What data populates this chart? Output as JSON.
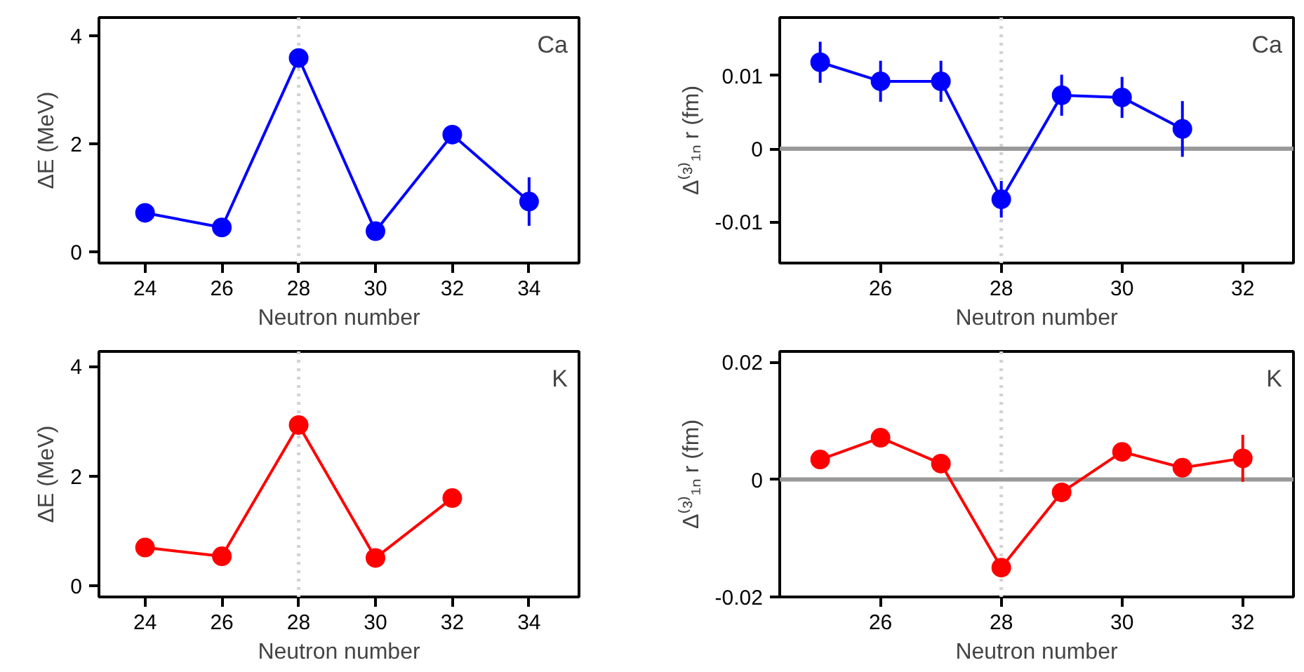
{
  "chart_data": [
    {
      "type": "line",
      "x": [
        24,
        26,
        28,
        30,
        32,
        34
      ],
      "xlabel": "Neutron number",
      "ylabel": "ΔE (MeV)",
      "series": [
        {
          "color": "#0000ff",
          "values": [
            0.72,
            0.45,
            3.59,
            0.38,
            2.17,
            0.93
          ],
          "errors": [
            null,
            null,
            null,
            null,
            null,
            0.45
          ]
        }
      ],
      "xlim": [
        22.8,
        35.3
      ],
      "ylim": [
        -0.21,
        4.34
      ],
      "xticks": [
        24,
        26,
        28,
        30,
        32,
        34
      ],
      "yticks": [
        0,
        2,
        4
      ],
      "ref_lines": [
        {
          "axis": "x",
          "value": 28,
          "color": "#d3d3d3",
          "line_style": "dotted"
        }
      ],
      "annotations": [
        "Ca"
      ],
      "marker": "circle",
      "line_style": "solid"
    },
    {
      "type": "line",
      "x": [
        25,
        26,
        27,
        28,
        29,
        30,
        31
      ],
      "xlabel": "Neutron number",
      "ylabel": "Δ⁽³⁾₁ₙ r (fm)",
      "series": [
        {
          "color": "#0000ff",
          "values": [
            0.0118,
            0.0092,
            0.0092,
            -0.0069,
            0.0073,
            0.007,
            0.0027
          ],
          "errors": [
            0.0028,
            0.0028,
            0.0028,
            0.0025,
            0.0028,
            0.0028,
            0.0038
          ]
        }
      ],
      "xlim": [
        24.33,
        32.84
      ],
      "ylim": [
        -0.0156,
        0.0179
      ],
      "xticks": [
        26,
        28,
        30,
        32
      ],
      "yticks": [
        -0.01,
        0,
        0.01
      ],
      "ref_lines": [
        {
          "axis": "x",
          "value": 28,
          "color": "#d3d3d3",
          "line_style": "dotted"
        },
        {
          "axis": "y",
          "value": 0,
          "color": "#999999",
          "line_style": "solid"
        }
      ],
      "annotations": [
        "Ca"
      ],
      "marker": "circle",
      "line_style": "solid"
    },
    {
      "type": "line",
      "x": [
        24,
        26,
        28,
        30,
        32
      ],
      "xlabel": "Neutron number",
      "ylabel": "ΔE (MeV)",
      "series": [
        {
          "color": "#ff0000",
          "values": [
            0.7,
            0.54,
            2.93,
            0.51,
            1.6
          ]
        }
      ],
      "xlim": [
        22.8,
        35.3
      ],
      "ylim": [
        -0.2,
        4.27
      ],
      "xticks": [
        24,
        26,
        28,
        30,
        32,
        34
      ],
      "yticks": [
        0,
        2,
        4
      ],
      "ref_lines": [
        {
          "axis": "x",
          "value": 28,
          "color": "#d3d3d3",
          "line_style": "dotted"
        }
      ],
      "annotations": [
        "K"
      ],
      "marker": "circle",
      "line_style": "solid"
    },
    {
      "type": "line",
      "x": [
        25,
        26,
        27,
        28,
        29,
        30,
        31,
        32
      ],
      "xlabel": "Neutron number",
      "ylabel": "Δ⁽³⁾₁ₙ r (fm)",
      "series": [
        {
          "color": "#ff0000",
          "values": [
            0.0034,
            0.0071,
            0.0027,
            -0.015,
            -0.0022,
            0.0047,
            0.002,
            0.0036
          ],
          "errors": [
            null,
            null,
            null,
            null,
            null,
            null,
            null,
            0.004
          ]
        }
      ],
      "xlim": [
        24.33,
        32.84
      ],
      "ylim": [
        -0.02,
        0.0218
      ],
      "xticks": [
        26,
        28,
        30,
        32
      ],
      "yticks": [
        -0.02,
        0,
        0.02
      ],
      "ref_lines": [
        {
          "axis": "x",
          "value": 28,
          "color": "#d3d3d3",
          "line_style": "dotted"
        },
        {
          "axis": "y",
          "value": 0,
          "color": "#999999",
          "line_style": "solid"
        }
      ],
      "annotations": [
        "K"
      ],
      "marker": "circle",
      "line_style": "solid"
    }
  ]
}
